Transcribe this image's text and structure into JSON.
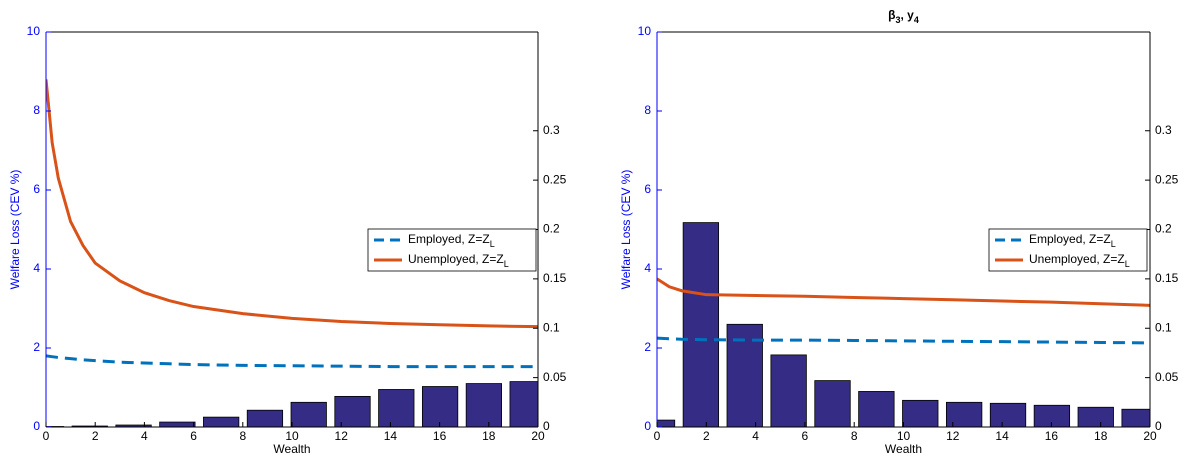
{
  "chart_data": [
    {
      "type": "combo",
      "xlabel": "Wealth",
      "ylabel": "Welfare Loss (CEV %)",
      "xlim": [
        0,
        20
      ],
      "xticks": [
        0,
        2,
        4,
        6,
        8,
        10,
        12,
        14,
        16,
        18,
        20
      ],
      "ylim": [
        0,
        10
      ],
      "yticks": [
        0,
        2,
        4,
        6,
        8,
        10
      ],
      "y2lim": [
        0,
        0.4
      ],
      "y2ticks": [
        0,
        0.05,
        0.1,
        0.15,
        0.2,
        0.25,
        0.3
      ],
      "legend": "right",
      "series": [
        {
          "type": "bar",
          "axis": "y2",
          "color": "#342c85",
          "bar_width": 1.44,
          "x": [
            0,
            1.78,
            3.56,
            5.34,
            7.12,
            8.9,
            10.68,
            12.46,
            14.24,
            16.02,
            17.8,
            19.58
          ],
          "values": [
            0.0005,
            0.001,
            0.002,
            0.005,
            0.01,
            0.017,
            0.025,
            0.031,
            0.038,
            0.041,
            0.044,
            0.046
          ]
        },
        {
          "type": "line",
          "name": "Employed, Z=Z_L",
          "color": "#0072bd",
          "dash": true,
          "x": [
            0,
            0.25,
            0.5,
            1,
            1.5,
            2,
            3,
            4,
            5,
            6,
            8,
            10,
            12,
            14,
            16,
            18,
            20
          ],
          "values": [
            1.8,
            1.78,
            1.76,
            1.73,
            1.7,
            1.68,
            1.64,
            1.62,
            1.6,
            1.58,
            1.56,
            1.55,
            1.54,
            1.53,
            1.53,
            1.53,
            1.53
          ]
        },
        {
          "type": "line",
          "name": "Unemployed, Z=Z_L",
          "color": "#d95319",
          "dash": false,
          "x": [
            0,
            0.25,
            0.5,
            1,
            1.5,
            2,
            3,
            4,
            5,
            6,
            8,
            10,
            12,
            14,
            16,
            18,
            20
          ],
          "values": [
            8.8,
            7.2,
            6.3,
            5.2,
            4.6,
            4.15,
            3.7,
            3.4,
            3.2,
            3.05,
            2.87,
            2.75,
            2.67,
            2.62,
            2.59,
            2.56,
            2.54
          ]
        }
      ]
    },
    {
      "type": "combo",
      "title": "β_3, y_4",
      "xlabel": "Wealth",
      "ylabel": "Welfare Loss (CEV %)",
      "xlim": [
        0,
        20
      ],
      "xticks": [
        0,
        2,
        4,
        6,
        8,
        10,
        12,
        14,
        16,
        18,
        20
      ],
      "ylim": [
        0,
        10
      ],
      "yticks": [
        0,
        2,
        4,
        6,
        8,
        10
      ],
      "y2lim": [
        0,
        0.4
      ],
      "y2ticks": [
        0,
        0.05,
        0.1,
        0.15,
        0.2,
        0.25,
        0.3
      ],
      "legend": "right",
      "series": [
        {
          "type": "bar",
          "axis": "y2",
          "color": "#342c85",
          "bar_width": 1.44,
          "x": [
            0,
            1.78,
            3.56,
            5.34,
            7.12,
            8.9,
            10.68,
            12.46,
            14.24,
            16.02,
            17.8,
            19.58
          ],
          "values": [
            0.007,
            0.207,
            0.104,
            0.073,
            0.047,
            0.036,
            0.027,
            0.025,
            0.024,
            0.022,
            0.02,
            0.018
          ]
        },
        {
          "type": "line",
          "name": "Employed, Z=Z_L",
          "color": "#0072bd",
          "dash": true,
          "x": [
            0,
            1,
            2,
            4,
            6,
            8,
            10,
            12,
            14,
            16,
            18,
            20
          ],
          "values": [
            2.25,
            2.22,
            2.21,
            2.2,
            2.2,
            2.19,
            2.18,
            2.17,
            2.16,
            2.15,
            2.14,
            2.13
          ]
        },
        {
          "type": "line",
          "name": "Unemployed, Z=Z_L",
          "color": "#d95319",
          "dash": false,
          "x": [
            0,
            0.5,
            1,
            2,
            4,
            6,
            8,
            10,
            12,
            14,
            16,
            18,
            20
          ],
          "values": [
            3.75,
            3.55,
            3.45,
            3.35,
            3.33,
            3.31,
            3.28,
            3.25,
            3.22,
            3.19,
            3.16,
            3.12,
            3.08
          ]
        }
      ]
    }
  ]
}
